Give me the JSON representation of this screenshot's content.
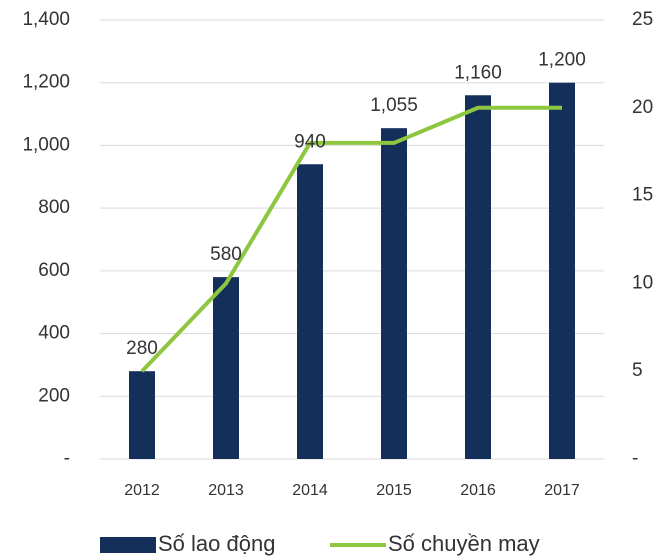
{
  "chart_data": {
    "type": "bar-line",
    "categories": [
      "2012",
      "2013",
      "2014",
      "2015",
      "2016",
      "2017"
    ],
    "series": [
      {
        "name": "Số lao động",
        "color": "#14305a",
        "type": "bar",
        "values": [
          280,
          580,
          940,
          1055,
          1160,
          1200
        ],
        "value_labels": [
          "280",
          "580",
          "940",
          "1,055",
          "1,160",
          "1,200"
        ]
      },
      {
        "name": "Số chuyền may",
        "color": "#8dc63f",
        "type": "line",
        "axis": "y2",
        "values": [
          5,
          10,
          18,
          18,
          20,
          20
        ]
      }
    ],
    "ylim": [
      0,
      1400
    ],
    "yticks": [
      {
        "value": 0,
        "label": "-"
      },
      200,
      400,
      600,
      800,
      {
        "value": 1000,
        "label": "1,000"
      },
      {
        "value": 1200,
        "label": "1,200"
      },
      {
        "value": 1400,
        "label": "1,400"
      }
    ],
    "y2lim": [
      0,
      25
    ],
    "y2ticks": [
      {
        "value": 0,
        "label": "-"
      },
      5,
      10,
      15,
      20,
      25
    ],
    "grid": true,
    "legend": "bottom"
  }
}
